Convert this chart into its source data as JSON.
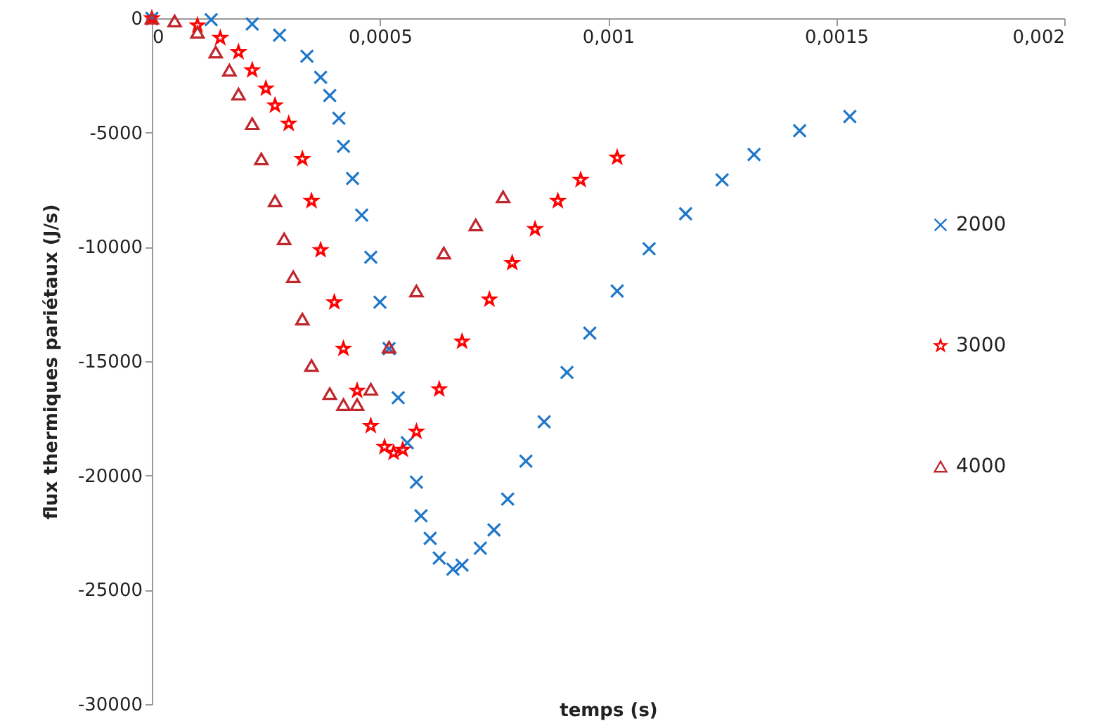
{
  "chart_data": {
    "type": "scatter",
    "xlabel": "temps (s)",
    "ylabel": "flux thermiques pariétaux (J/s)",
    "xlim": [
      0,
      0.002
    ],
    "ylim": [
      -30000,
      0
    ],
    "xticks": [
      0,
      {
        "value": 0.0005,
        "label": "0,0005"
      },
      {
        "value": 0.001,
        "label": "0,001"
      },
      {
        "value": 0.0015,
        "label": "0,0015"
      },
      {
        "value": 0.002,
        "label": "0,002"
      }
    ],
    "yticks": [
      -30000,
      -25000,
      -20000,
      -15000,
      -10000,
      -5000,
      0
    ],
    "grid": false,
    "legend": "right",
    "series": [
      {
        "name": "2000",
        "color": "#1f77c9",
        "marker": "cross",
        "x": [
          0,
          0.00013,
          0.00022,
          0.00028,
          0.00034,
          0.00037,
          0.00039,
          0.00041,
          0.00042,
          0.00044,
          0.00046,
          0.00048,
          0.0005,
          0.00052,
          0.00054,
          0.00056,
          0.00058,
          0.00059,
          0.00061,
          0.00063,
          0.00066,
          0.00068,
          0.00072,
          0.00075,
          0.00078,
          0.00082,
          0.00086,
          0.00091,
          0.00096,
          0.00102,
          0.00109,
          0.00117,
          0.00125,
          0.00132,
          0.00142,
          0.00153
        ],
        "values": [
          0,
          -60,
          -250,
          -740,
          -1660,
          -2580,
          -3380,
          -4370,
          -5600,
          -7010,
          -8610,
          -10450,
          -12420,
          -14450,
          -16600,
          -18570,
          -20290,
          -21760,
          -22750,
          -23610,
          -24100,
          -23920,
          -23180,
          -22380,
          -21030,
          -19370,
          -17650,
          -15490,
          -13770,
          -11930,
          -10080,
          -8550,
          -7070,
          -5960,
          -4920,
          -4300
        ]
      },
      {
        "name": "3000",
        "color": "#ff0000",
        "marker": "star",
        "x": [
          0,
          0.0001,
          0.00015,
          0.00019,
          0.00022,
          0.00025,
          0.00027,
          0.0003,
          0.00033,
          0.00035,
          0.00037,
          0.0004,
          0.00042,
          0.00045,
          0.00048,
          0.00051,
          0.00053,
          0.00055,
          0.00058,
          0.00063,
          0.00068,
          0.00074,
          0.00079,
          0.00084,
          0.00089,
          0.00094,
          0.00102
        ],
        "values": [
          0,
          -310,
          -860,
          -1480,
          -2270,
          -3070,
          -3810,
          -4610,
          -6150,
          -7990,
          -10140,
          -12420,
          -14450,
          -16290,
          -17830,
          -18750,
          -19000,
          -18870,
          -18080,
          -16230,
          -14140,
          -12300,
          -10700,
          -9220,
          -7990,
          -7070,
          -6090
        ]
      },
      {
        "name": "4000",
        "color": "#c0272d",
        "marker": "triangle",
        "x": [
          0,
          5e-05,
          0.0001,
          0.00014,
          0.00017,
          0.00019,
          0.00022,
          0.00024,
          0.00027,
          0.00029,
          0.00031,
          0.00033,
          0.00035,
          0.00039,
          0.00042,
          0.00045,
          0.00048,
          0.00052,
          0.00058,
          0.00064,
          0.00071,
          0.00077
        ],
        "values": [
          0,
          -120,
          -610,
          -1480,
          -2270,
          -3320,
          -4610,
          -6150,
          -7990,
          -9650,
          -11310,
          -13160,
          -15190,
          -16420,
          -16900,
          -16900,
          -16230,
          -14390,
          -11930,
          -10270,
          -9040,
          -7810
        ]
      }
    ]
  }
}
